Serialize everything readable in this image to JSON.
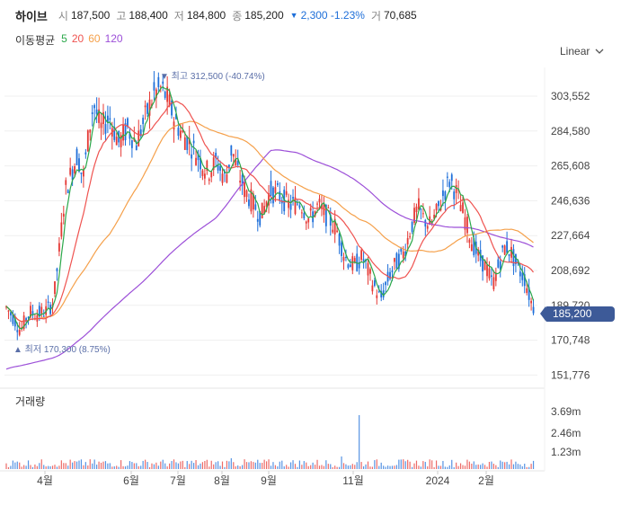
{
  "quote": {
    "name": "하이브",
    "open_label": "시",
    "open": "187,500",
    "high_label": "고",
    "high": "188,400",
    "low_label": "저",
    "low": "184,800",
    "close_label": "종",
    "close": "185,200",
    "change": "2,300 -1.23%",
    "volume_label": "거",
    "volume": "70,685"
  },
  "moving_average": {
    "title": "이동평균",
    "periods": [
      {
        "label": "5",
        "color": "#2ba84a"
      },
      {
        "label": "20",
        "color": "#ef5350"
      },
      {
        "label": "60",
        "color": "#f5a04a"
      },
      {
        "label": "120",
        "color": "#9c4fd8"
      }
    ]
  },
  "scale_mode": "Linear",
  "price_axis": [
    "303,552",
    "284,580",
    "265,608",
    "246,636",
    "227,664",
    "208,692",
    "189,720",
    "170,748",
    "151,776"
  ],
  "current_price_tag": "185,200",
  "high_marker": {
    "label": "최고",
    "value": "312,500 (-40.74%)"
  },
  "low_marker": {
    "label": "최저",
    "value": "170,300 (8.75%)"
  },
  "volume_panel": {
    "title": "거래량",
    "axis": [
      "3.69m",
      "2.46m",
      "1.23m"
    ]
  },
  "time_axis": [
    "4월",
    "6월",
    "7월",
    "8월",
    "9월",
    "11월",
    "2024",
    "2월"
  ],
  "colors": {
    "up": "#e53935",
    "down": "#1e6fd9",
    "ma5": "#2ba84a",
    "ma20": "#ef5350",
    "ma60": "#f5a04a",
    "ma120": "#9c4fd8",
    "marker": "#5b6fa8"
  },
  "chart_data": {
    "type": "candlestick",
    "series_name": "하이브",
    "x_range": [
      "2023-03",
      "2024-03"
    ],
    "ylim": [
      151776,
      322524
    ],
    "price_path": [
      [
        0,
        190000
      ],
      [
        10,
        183000
      ],
      [
        18,
        176000
      ],
      [
        28,
        186000
      ],
      [
        38,
        185000
      ],
      [
        48,
        187000
      ],
      [
        55,
        192000
      ],
      [
        62,
        222000
      ],
      [
        68,
        252000
      ],
      [
        75,
        262000
      ],
      [
        82,
        272000
      ],
      [
        88,
        258000
      ],
      [
        95,
        285000
      ],
      [
        100,
        300000
      ],
      [
        108,
        286000
      ],
      [
        118,
        292000
      ],
      [
        128,
        278000
      ],
      [
        138,
        286000
      ],
      [
        148,
        278000
      ],
      [
        158,
        292000
      ],
      [
        168,
        305000
      ],
      [
        176,
        308000
      ],
      [
        183,
        302000
      ],
      [
        190,
        292000
      ],
      [
        198,
        284000
      ],
      [
        208,
        278000
      ],
      [
        218,
        270000
      ],
      [
        228,
        262000
      ],
      [
        238,
        268000
      ],
      [
        248,
        258000
      ],
      [
        255,
        275000
      ],
      [
        262,
        262000
      ],
      [
        270,
        252000
      ],
      [
        278,
        246000
      ],
      [
        288,
        238000
      ],
      [
        298,
        252000
      ],
      [
        308,
        250000
      ],
      [
        320,
        244000
      ],
      [
        332,
        246000
      ],
      [
        342,
        236000
      ],
      [
        352,
        244000
      ],
      [
        362,
        238000
      ],
      [
        372,
        232000
      ],
      [
        382,
        216000
      ],
      [
        392,
        211000
      ],
      [
        402,
        216000
      ],
      [
        412,
        203000
      ],
      [
        422,
        193000
      ],
      [
        432,
        206000
      ],
      [
        440,
        213000
      ],
      [
        448,
        218000
      ],
      [
        456,
        232000
      ],
      [
        464,
        243000
      ],
      [
        470,
        237000
      ],
      [
        478,
        233000
      ],
      [
        486,
        241000
      ],
      [
        494,
        252000
      ],
      [
        500,
        258000
      ],
      [
        508,
        250000
      ],
      [
        516,
        238000
      ],
      [
        524,
        225000
      ],
      [
        532,
        216000
      ],
      [
        540,
        211000
      ],
      [
        548,
        201000
      ],
      [
        556,
        214000
      ],
      [
        562,
        222000
      ],
      [
        568,
        219000
      ],
      [
        576,
        210000
      ],
      [
        584,
        204000
      ],
      [
        590,
        193000
      ],
      [
        596,
        186000
      ]
    ]
  }
}
